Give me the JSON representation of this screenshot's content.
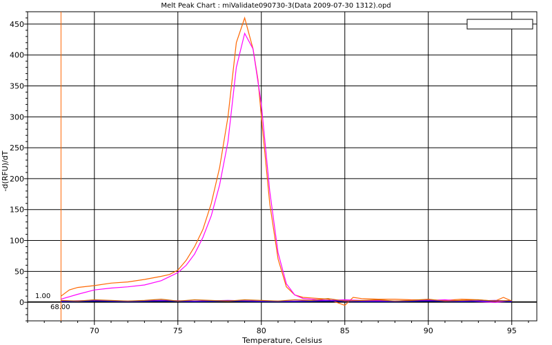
{
  "chart_data": {
    "type": "line",
    "title": "Melt Peak Chart : miValidate090730-3(Data 2009-07-30 1312).opd",
    "xlabel": "Temperature, Celsius",
    "ylabel": "-d(RFU)/dT",
    "xlim": [
      66,
      96.5
    ],
    "ylim": [
      -30,
      470
    ],
    "xticks": [
      70,
      75,
      80,
      85,
      90,
      95
    ],
    "yticks": [
      0,
      50,
      100,
      150,
      200,
      250,
      300,
      350,
      400,
      450
    ],
    "grid": true,
    "legend": "top-right",
    "threshold": {
      "value": 1.0,
      "label": "1.00"
    },
    "start_marker": {
      "value": 68.0,
      "label": "68.00"
    },
    "series": [
      {
        "color": "#ff6600",
        "x": [
          68,
          68.5,
          69,
          70,
          71,
          72,
          73,
          74,
          74.5,
          75,
          75.5,
          76,
          76.5,
          77,
          77.5,
          78,
          78.5,
          79,
          79.5,
          79.8,
          80,
          80.5,
          81,
          81.5,
          82,
          82.5,
          83,
          84,
          85,
          85.5,
          86,
          87,
          88,
          89,
          90,
          91,
          92,
          93,
          94,
          94.5,
          95
        ],
        "y": [
          10,
          20,
          24,
          27,
          31,
          33,
          37,
          42,
          45,
          52,
          68,
          90,
          118,
          160,
          218,
          300,
          420,
          460,
          410,
          360,
          300,
          160,
          70,
          25,
          12,
          8,
          7,
          5,
          -5,
          8,
          6,
          5,
          5,
          4,
          4,
          3,
          5,
          4,
          2,
          8,
          2
        ]
      },
      {
        "color": "#ff00ff",
        "x": [
          68,
          69,
          70,
          71,
          72,
          73,
          74,
          75,
          75.5,
          76,
          76.5,
          77,
          77.5,
          78,
          78.5,
          79,
          79.5,
          80,
          80.5,
          81,
          81.5,
          82,
          82.5,
          83,
          84,
          85,
          86,
          87,
          88,
          89,
          90,
          91,
          92,
          93,
          94,
          95
        ],
        "y": [
          5,
          13,
          20,
          23,
          25,
          28,
          35,
          48,
          60,
          78,
          105,
          140,
          190,
          260,
          380,
          435,
          410,
          320,
          180,
          80,
          30,
          12,
          6,
          5,
          3,
          4,
          3,
          3,
          2,
          3,
          3,
          4,
          2,
          1,
          0,
          2
        ]
      },
      {
        "color": "#9900cc",
        "x": [
          68,
          70,
          72,
          74,
          76,
          78,
          80,
          82,
          84,
          86,
          88,
          90,
          92,
          94,
          95
        ],
        "y": [
          2,
          3,
          2,
          3,
          2,
          3,
          2,
          2,
          3,
          2,
          2,
          3,
          2,
          3,
          2
        ]
      },
      {
        "color": "#0000cc",
        "x": [
          68,
          70,
          72,
          74,
          76,
          78,
          80,
          82,
          84,
          86,
          88,
          90,
          92,
          94,
          95
        ],
        "y": [
          1,
          2,
          1,
          2,
          1,
          2,
          1,
          1,
          2,
          1,
          1,
          2,
          1,
          2,
          1
        ]
      },
      {
        "color": "#cc6600",
        "x": [
          68,
          69,
          70,
          71,
          72,
          73,
          74,
          75,
          76,
          77,
          78,
          79,
          80,
          81,
          82,
          83,
          84,
          85,
          86,
          87,
          88,
          89,
          90,
          91,
          92,
          93,
          94,
          95
        ],
        "y": [
          3,
          2,
          4,
          3,
          2,
          3,
          5,
          2,
          4,
          3,
          2,
          4,
          3,
          2,
          4,
          3,
          6,
          2,
          3,
          4,
          2,
          3,
          5,
          2,
          3,
          4,
          2,
          3
        ]
      }
    ]
  },
  "colors": {
    "threshold": "#000000",
    "start_marker": "#ff6600",
    "grid": "#000000",
    "background": "#ffffff"
  }
}
